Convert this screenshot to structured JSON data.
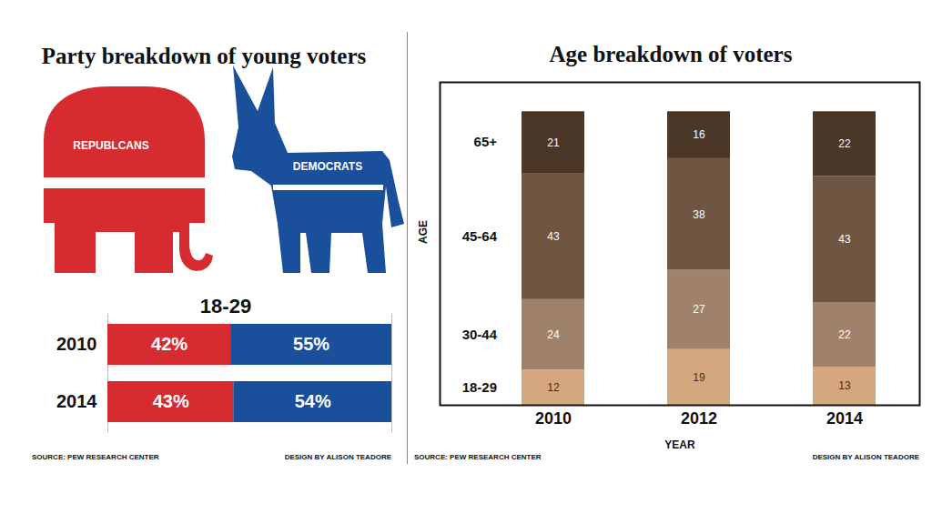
{
  "chart_data": [
    {
      "type": "bar",
      "title": "Party breakdown of young voters",
      "subtitle": "18-29",
      "orientation": "horizontal",
      "stacked": true,
      "data_labels": true,
      "tick_labels": "y",
      "categories": [
        "2010",
        "2014"
      ],
      "series": [
        {
          "name": "REPUBLCANS",
          "color": "#d62b2f",
          "values": [
            42,
            43
          ],
          "value_labels": [
            "42%",
            "43%"
          ]
        },
        {
          "name": "DEMOCRATS",
          "color": "#1a4f9b",
          "values": [
            55,
            54
          ],
          "value_labels": [
            "55%",
            "54%"
          ]
        }
      ],
      "xlim": [
        0,
        97
      ],
      "annotations": [
        "SOURCE: PEW RESEARCH CENTER",
        "DESIGN BY ALISON TEADORE"
      ]
    },
    {
      "type": "bar",
      "title": "Age breakdown of voters",
      "x_label": "YEAR",
      "y_label": "AGE",
      "stacked": true,
      "data_labels": true,
      "tick_labels": "x",
      "categories": [
        "2010",
        "2012",
        "2014"
      ],
      "series": [
        {
          "name": "18-29",
          "color": "#d4a77f",
          "values": [
            12,
            19,
            13
          ]
        },
        {
          "name": "30-44",
          "color": "#a0826a",
          "values": [
            24,
            27,
            22
          ]
        },
        {
          "name": "45-64",
          "color": "#6e5642",
          "values": [
            43,
            38,
            43
          ]
        },
        {
          "name": "65+",
          "color": "#4a3728",
          "values": [
            21,
            16,
            22
          ]
        }
      ],
      "ylim": [
        0,
        110
      ],
      "annotations": [
        "SOURCE: PEW RESEARCH CENTER",
        "DESIGN BY ALISON TEADORE"
      ]
    }
  ]
}
